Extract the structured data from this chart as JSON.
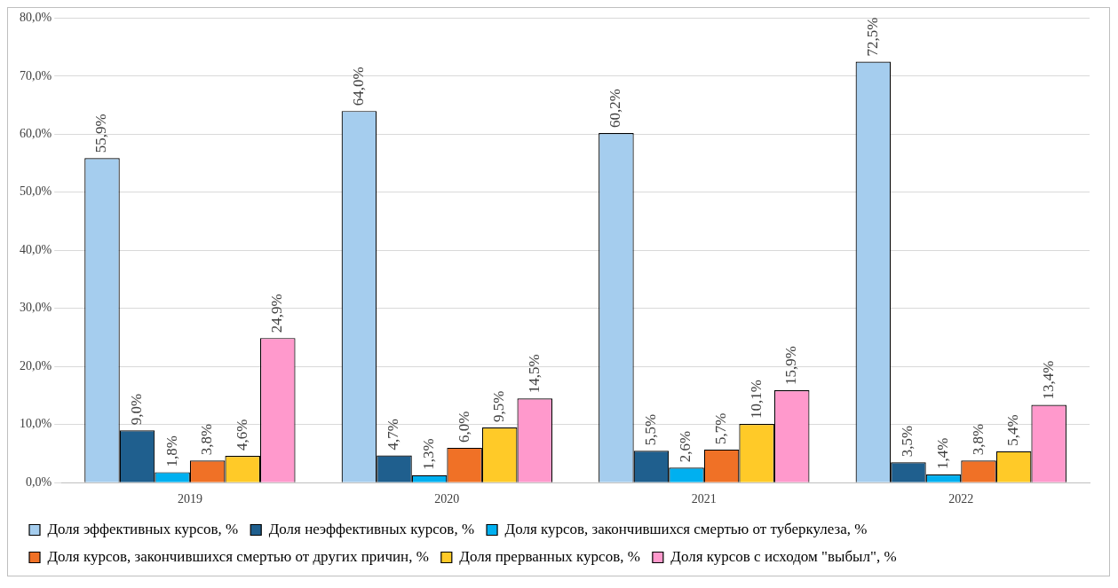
{
  "chart_data": {
    "type": "bar",
    "categories": [
      "2019",
      "2020",
      "2021",
      "2022"
    ],
    "series": [
      {
        "name": "Доля эффективных курсов, %",
        "color": "#a5cdee",
        "values": [
          55.9,
          64.0,
          60.2,
          72.5
        ],
        "value_labels": [
          "55,9%",
          "64,0%",
          "60,2%",
          "72,5%"
        ]
      },
      {
        "name": "Доля неэффективных курсов, %",
        "color": "#1f5f8e",
        "values": [
          9.0,
          4.7,
          5.5,
          3.5
        ],
        "value_labels": [
          "9,0%",
          "4,7%",
          "5,5%",
          "3,5%"
        ]
      },
      {
        "name": "Доля курсов, закончившихся смертью от туберкулеза, %",
        "color": "#00b0f0",
        "values": [
          1.8,
          1.3,
          2.6,
          1.4
        ],
        "value_labels": [
          "1,8%",
          "1,3%",
          "2,6%",
          "1,4%"
        ]
      },
      {
        "name": "Доля курсов, закончившихся смертью от других причин, %",
        "color": "#f07126",
        "values": [
          3.8,
          6.0,
          5.7,
          3.8
        ],
        "value_labels": [
          "3,8%",
          "6,0%",
          "5,7%",
          "3,8%"
        ]
      },
      {
        "name": "Доля прерванных курсов, %",
        "color": "#ffca28",
        "values": [
          4.6,
          9.5,
          10.1,
          5.4
        ],
        "value_labels": [
          "4,6%",
          "9,5%",
          "10,1%",
          "5,4%"
        ]
      },
      {
        "name": "Доля курсов с исходом \"выбыл\", %",
        "color": "#ff99cc",
        "values": [
          24.9,
          14.5,
          15.9,
          13.4
        ],
        "value_labels": [
          "24,9%",
          "14,5%",
          "15,9%",
          "13,4%"
        ]
      }
    ],
    "ylim": [
      0,
      80
    ],
    "yticks": [
      {
        "value": 0,
        "label": "0,0%"
      },
      {
        "value": 10,
        "label": "10,0%"
      },
      {
        "value": 20,
        "label": "20,0%"
      },
      {
        "value": 30,
        "label": "30,0%"
      },
      {
        "value": 40,
        "label": "40,0%"
      },
      {
        "value": 50,
        "label": "50,0%"
      },
      {
        "value": 60,
        "label": "60,0%"
      },
      {
        "value": 70,
        "label": "70,0%"
      },
      {
        "value": 80,
        "label": "80,0%"
      }
    ],
    "grid": "y",
    "legend": "bottom"
  }
}
